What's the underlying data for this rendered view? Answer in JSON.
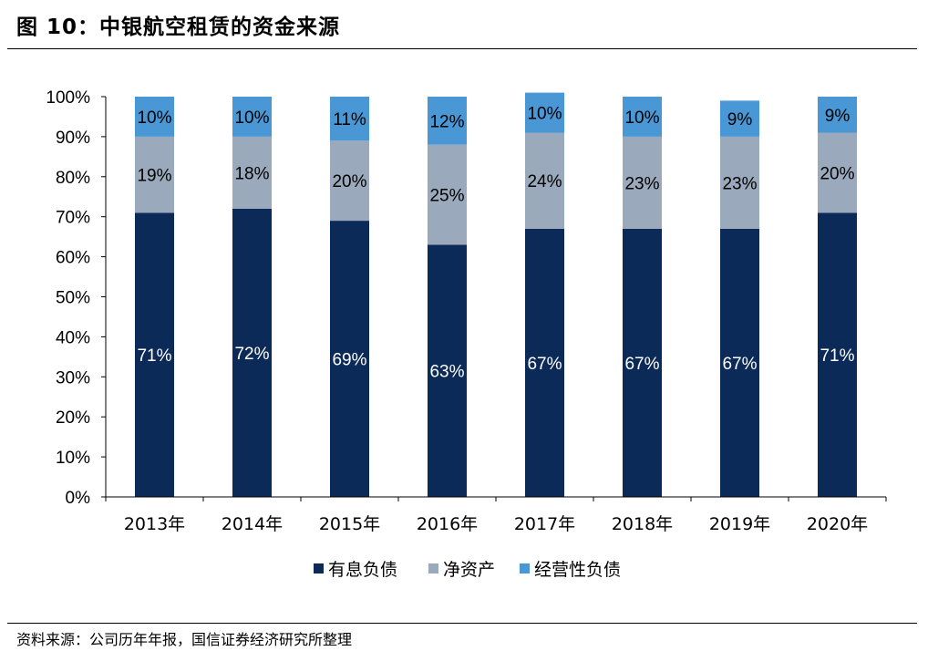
{
  "header": {
    "title": "图 10：中银航空租赁的资金来源"
  },
  "footer": {
    "source": "资料来源：公司历年年报，国信证券经济研究所整理"
  },
  "colors": {
    "有息负债": "#0b2a57",
    "净资产": "#9aa9bb",
    "经营性负债": "#4a97d6"
  },
  "chart_data": {
    "type": "bar",
    "stacked": true,
    "percent_stacked": true,
    "categories": [
      "2013年",
      "2014年",
      "2015年",
      "2016年",
      "2017年",
      "2018年",
      "2019年",
      "2020年"
    ],
    "series": [
      {
        "name": "有息负债",
        "values": [
          71,
          72,
          69,
          63,
          67,
          67,
          67,
          71
        ],
        "labels": [
          "71%",
          "72%",
          "69%",
          "63%",
          "67%",
          "67%",
          "67%",
          "71%"
        ]
      },
      {
        "name": "净资产",
        "values": [
          19,
          18,
          20,
          25,
          24,
          23,
          23,
          20
        ],
        "labels": [
          "19%",
          "18%",
          "20%",
          "25%",
          "24%",
          "23%",
          "23%",
          "20%"
        ]
      },
      {
        "name": "经营性负债",
        "values": [
          10,
          10,
          11,
          12,
          10,
          10,
          9,
          9
        ],
        "labels": [
          "10%",
          "10%",
          "11%",
          "12%",
          "10%",
          "10%",
          "9%",
          "9%"
        ]
      }
    ],
    "ylim": [
      0,
      100
    ],
    "yticks": [
      "0%",
      "10%",
      "20%",
      "30%",
      "40%",
      "50%",
      "60%",
      "70%",
      "80%",
      "90%",
      "100%"
    ],
    "legend_position": "bottom",
    "grid": false
  }
}
